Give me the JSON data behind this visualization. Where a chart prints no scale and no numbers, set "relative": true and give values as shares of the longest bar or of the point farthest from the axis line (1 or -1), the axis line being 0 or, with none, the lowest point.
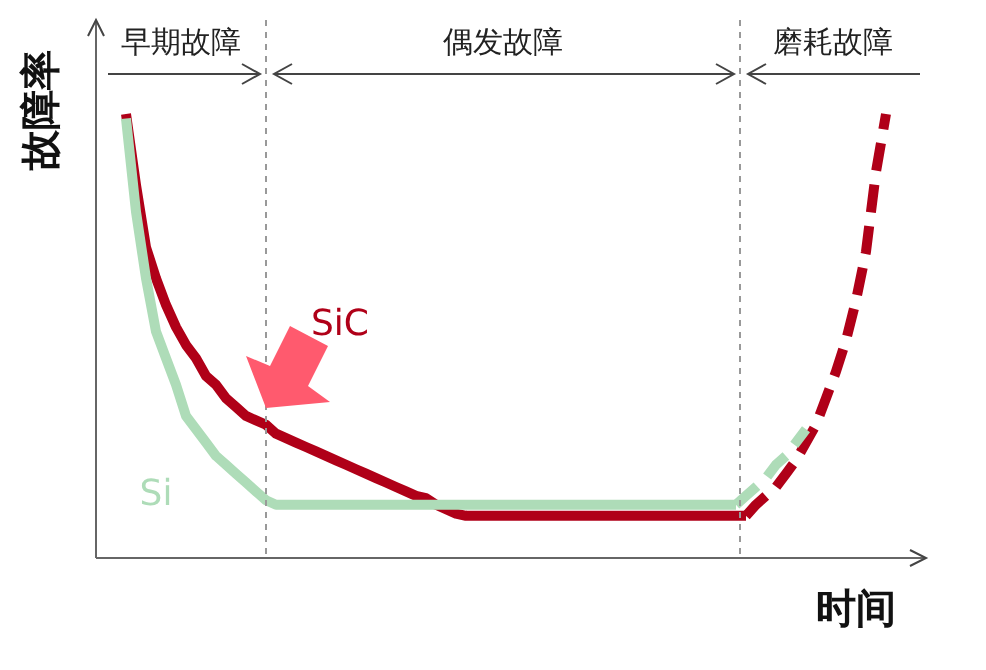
{
  "chart_data": {
    "type": "line",
    "relative": true,
    "xlabel": "时间",
    "ylabel": "故障率",
    "tick_labels": false,
    "marker": "none",
    "legend": false,
    "annotations": [
      "早期故障",
      "偶发故障",
      "磨耗故障"
    ],
    "categories": [
      null,
      null,
      null,
      null,
      null,
      null,
      null,
      null,
      null,
      null,
      null,
      null,
      null,
      null,
      null,
      null,
      null,
      null,
      null,
      null,
      null,
      null,
      null,
      null,
      null,
      null,
      null,
      null,
      null,
      null,
      null,
      null,
      null,
      null,
      null,
      null,
      null,
      null,
      null,
      null,
      null,
      null,
      null,
      null,
      null,
      null,
      null,
      null,
      null,
      null,
      null,
      null,
      null,
      null,
      null,
      null,
      null,
      null,
      null,
      null,
      null,
      null,
      null,
      null,
      null,
      null,
      null,
      null,
      null,
      null,
      null,
      null,
      null,
      null,
      null,
      null,
      null,
      null,
      null,
      null,
      null,
      null,
      null,
      null
    ],
    "series": [
      {
        "name": "Si",
        "color": "#aedcb8",
        "line_style": "solid",
        "values": [
          null,
          null,
          null,
          0.99,
          0.78,
          0.63,
          0.51,
          0.45,
          0.39,
          0.32,
          0.29,
          0.26,
          0.23,
          0.21,
          0.19,
          0.17,
          0.15,
          0.13,
          0.12,
          0.12,
          0.12,
          0.12,
          0.12,
          0.12,
          0.12,
          0.12,
          0.12,
          0.12,
          0.12,
          0.12,
          0.12,
          0.12,
          0.12,
          0.12,
          0.12,
          0.12,
          0.12,
          0.12,
          0.12,
          0.12,
          0.12,
          0.12,
          0.12,
          0.12,
          0.12,
          0.12,
          0.12,
          0.12,
          0.12,
          0.12,
          0.12,
          0.12,
          0.12,
          0.12,
          0.12,
          0.12,
          0.12,
          0.12,
          0.12,
          0.12,
          0.12,
          0.12,
          0.12,
          0.12,
          0.12,
          null,
          null,
          null,
          null,
          null,
          null,
          null,
          null,
          null,
          null,
          null,
          null,
          null,
          null,
          null,
          null,
          null,
          null,
          null
        ]
      },
      {
        "color": "#aedcb8",
        "line_style": "dashed",
        "values": [
          null,
          null,
          null,
          null,
          null,
          null,
          null,
          null,
          null,
          null,
          null,
          null,
          null,
          null,
          null,
          null,
          null,
          null,
          null,
          null,
          null,
          null,
          null,
          null,
          null,
          null,
          null,
          null,
          null,
          null,
          null,
          null,
          null,
          null,
          null,
          null,
          null,
          null,
          null,
          null,
          null,
          null,
          null,
          null,
          null,
          null,
          null,
          null,
          null,
          null,
          null,
          null,
          null,
          null,
          null,
          null,
          null,
          null,
          null,
          null,
          null,
          null,
          null,
          null,
          0.12,
          0.14,
          0.16,
          0.18,
          0.21,
          0.23,
          0.26,
          0.29,
          null,
          null,
          null,
          null,
          null,
          null,
          null,
          null,
          null,
          null,
          null,
          null
        ]
      },
      {
        "name": "SiC",
        "color": "#b00018",
        "line_style": "solid",
        "values": [
          null,
          null,
          null,
          1.0,
          0.84,
          0.7,
          0.63,
          0.57,
          0.52,
          0.48,
          0.45,
          0.41,
          0.39,
          0.36,
          0.34,
          0.32,
          0.31,
          0.3,
          0.28,
          0.27,
          0.26,
          0.25,
          0.24,
          0.23,
          0.22,
          0.21,
          0.2,
          0.19,
          0.18,
          0.17,
          0.16,
          0.15,
          0.14,
          0.135,
          0.12,
          0.11,
          0.1,
          0.095,
          0.095,
          0.095,
          0.095,
          0.095,
          0.095,
          0.095,
          0.095,
          0.095,
          0.095,
          0.095,
          0.095,
          0.095,
          0.095,
          0.095,
          0.095,
          0.095,
          0.095,
          0.095,
          0.095,
          0.095,
          0.095,
          0.095,
          0.095,
          0.095,
          0.095,
          0.095,
          0.095,
          0.095,
          null,
          null,
          null,
          null,
          null,
          null,
          null,
          null,
          null,
          null,
          null,
          null,
          null,
          null,
          null,
          null,
          null,
          null
        ]
      },
      {
        "color": "#b00018",
        "line_style": "dashed",
        "values": [
          null,
          null,
          null,
          null,
          null,
          null,
          null,
          null,
          null,
          null,
          null,
          null,
          null,
          null,
          null,
          null,
          null,
          null,
          null,
          null,
          null,
          null,
          null,
          null,
          null,
          null,
          null,
          null,
          null,
          null,
          null,
          null,
          null,
          null,
          null,
          null,
          null,
          null,
          null,
          null,
          null,
          null,
          null,
          null,
          null,
          null,
          null,
          null,
          null,
          null,
          null,
          null,
          null,
          null,
          null,
          null,
          null,
          null,
          null,
          null,
          null,
          null,
          null,
          null,
          null,
          0.095,
          0.12,
          0.14,
          0.16,
          0.19,
          0.22,
          0.26,
          0.3,
          0.36,
          0.42,
          0.49,
          0.58,
          0.69,
          0.87,
          1.0,
          null,
          null,
          null,
          null
        ]
      }
    ]
  }
}
